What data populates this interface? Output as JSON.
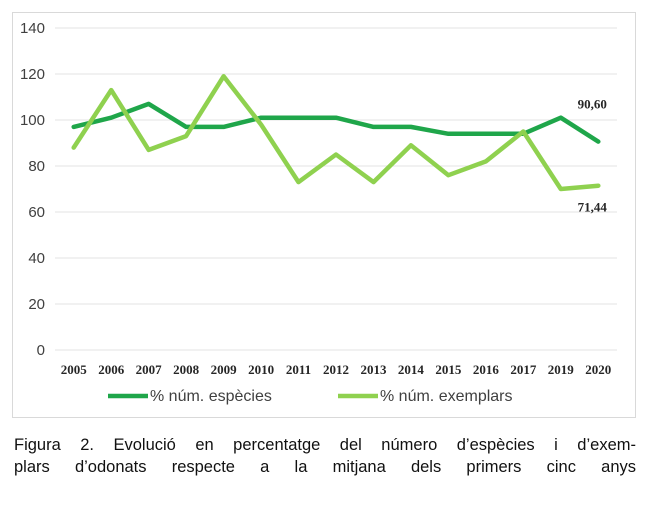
{
  "chart_data": {
    "type": "line",
    "title": "",
    "xlabel": "",
    "ylabel": "",
    "ylim": [
      0,
      140
    ],
    "yticks": [
      0,
      20,
      40,
      60,
      80,
      100,
      120,
      140
    ],
    "grid": "horizontal",
    "legend_position": "bottom",
    "categories": [
      "2005",
      "2006",
      "2007",
      "2008",
      "2009",
      "2010",
      "2011",
      "2012",
      "2013",
      "2014",
      "2015",
      "2016",
      "2017",
      "2019",
      "2020"
    ],
    "series": [
      {
        "name": "% núm. espècies",
        "color": "#1fa64a",
        "values": [
          97,
          101,
          107,
          97,
          97,
          101,
          101,
          101,
          97,
          97,
          94,
          94,
          94,
          101,
          90.6
        ],
        "end_label": "90,60"
      },
      {
        "name": "% núm.  exemplars",
        "color": "#8fd14f",
        "values": [
          88,
          113,
          87,
          93,
          119,
          98,
          73,
          85,
          73,
          89,
          76,
          82,
          95,
          70,
          71.44
        ],
        "end_label": "71,44"
      }
    ]
  },
  "caption": {
    "line1": "Figura 2. Evolució en percentatge del número d’espècies i d’exem-",
    "line2": "plars d’odonats respecte a la mitjana dels primers cinc anys"
  }
}
